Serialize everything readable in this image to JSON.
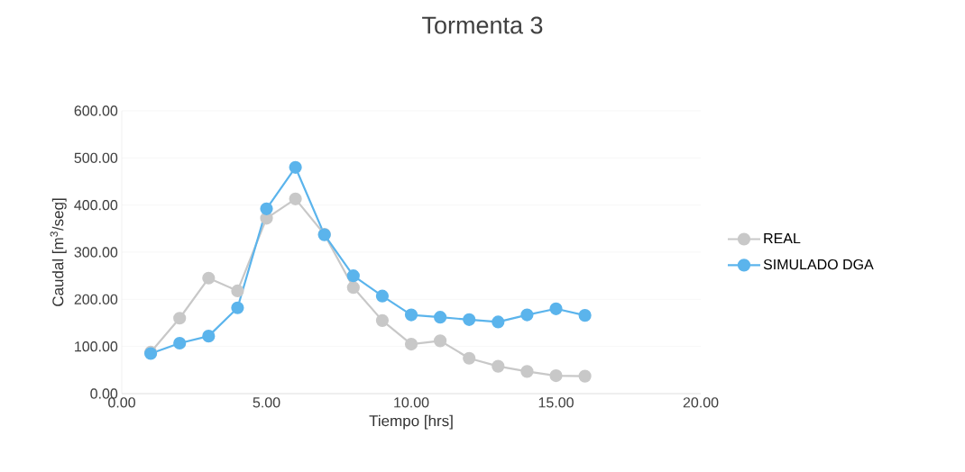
{
  "chart_data": {
    "type": "line",
    "title": "Tormenta 3",
    "xlabel": "Tiempo [hrs]",
    "ylabel": "Caudal [m$^{3}$/seg]",
    "xlim": [
      0,
      20
    ],
    "ylim": [
      0,
      600
    ],
    "xticks": [
      {
        "value": 0,
        "label": "0.00"
      },
      {
        "value": 5,
        "label": "5.00"
      },
      {
        "value": 10,
        "label": "10.00"
      },
      {
        "value": 15,
        "label": "15.00"
      },
      {
        "value": 20,
        "label": "20.00"
      }
    ],
    "yticks": [
      {
        "value": 0,
        "label": "0.00"
      },
      {
        "value": 100,
        "label": "100.00"
      },
      {
        "value": 200,
        "label": "200.00"
      },
      {
        "value": 300,
        "label": "300.00"
      },
      {
        "value": 400,
        "label": "400.00"
      },
      {
        "value": 500,
        "label": "500.00"
      },
      {
        "value": 600,
        "label": "600.00"
      }
    ],
    "x": [
      1,
      2,
      3,
      4,
      5,
      6,
      7,
      8,
      9,
      10,
      11,
      12,
      13,
      14,
      15,
      16
    ],
    "series": [
      {
        "name": "REAL",
        "color": "#c8c8c8",
        "values": [
          88,
          160,
          245,
          218,
          372,
          413,
          338,
          225,
          155,
          105,
          112,
          75,
          58,
          47,
          38,
          37
        ]
      },
      {
        "name": "SIMULADO DGA",
        "color": "#5bb4ec",
        "values": [
          85,
          107,
          122,
          182,
          392,
          480,
          337,
          250,
          207,
          167,
          162,
          157,
          152,
          167,
          180,
          166
        ]
      }
    ],
    "grid": "y",
    "legend": "right",
    "marker": "circle",
    "line_style": "solid"
  }
}
